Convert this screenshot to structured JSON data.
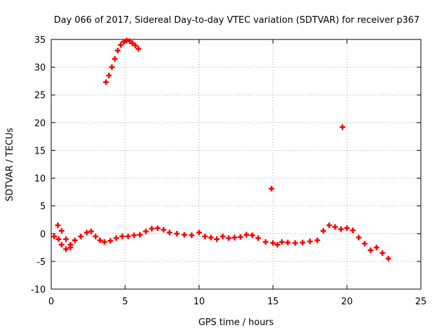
{
  "chart_data": {
    "type": "scatter",
    "title": "Day 066 of 2017, Sidereal Day-to-day VTEC variation (SDTVAR) for receiver p367",
    "xlabel": "GPS time / hours",
    "ylabel": "SDTVAR / TECUs",
    "xlim": [
      0,
      25
    ],
    "ylim": [
      -10,
      35
    ],
    "xticks": [
      0,
      5,
      10,
      15,
      20,
      25
    ],
    "yticks": [
      -10,
      -5,
      0,
      5,
      10,
      15,
      20,
      25,
      30,
      35
    ],
    "xtick_labels": [
      "0",
      "5",
      "10",
      "15",
      "20",
      "25"
    ],
    "ytick_labels": [
      "-10",
      "-5",
      "0",
      "5",
      "10",
      "15",
      "20",
      "25",
      "30",
      "35"
    ],
    "grid": true,
    "marker_color": "#ff0000",
    "series": [
      {
        "name": "SDTVAR",
        "x": [
          0.2,
          0.5,
          0.7,
          1.0,
          1.3,
          1.6,
          2.0,
          2.4,
          2.7,
          3.0,
          3.3,
          3.6,
          4.0,
          4.4,
          4.8,
          5.2,
          5.6,
          6.0,
          6.4,
          6.8,
          7.2,
          7.6,
          8.0,
          8.5,
          9.0,
          9.5,
          10.0,
          10.4,
          10.8,
          11.2,
          11.6,
          12.0,
          12.4,
          12.8,
          13.2,
          13.6,
          14.0,
          14.5,
          15.0,
          15.3,
          15.6,
          16.0,
          16.5,
          17.0,
          17.5,
          18.0,
          18.4,
          18.8,
          19.2,
          19.6,
          20.0,
          20.4,
          20.8,
          21.2,
          21.6,
          22.0,
          22.4,
          22.8,
          0.45,
          0.7,
          1.0,
          1.3,
          3.7,
          3.9,
          4.1,
          4.3,
          4.5,
          4.7,
          4.9,
          5.1,
          5.3,
          5.5,
          5.7,
          5.9,
          14.9,
          19.7
        ],
        "y": [
          -0.5,
          -1.0,
          -2.0,
          -2.8,
          -2.0,
          -1.2,
          -0.5,
          0.2,
          0.4,
          -0.5,
          -1.2,
          -1.5,
          -1.3,
          -0.8,
          -0.5,
          -0.5,
          -0.3,
          -0.2,
          0.4,
          0.9,
          1.0,
          0.7,
          0.2,
          0.0,
          -0.2,
          -0.3,
          0.2,
          -0.5,
          -0.7,
          -1.0,
          -0.5,
          -0.8,
          -0.7,
          -0.6,
          -0.2,
          -0.3,
          -0.8,
          -1.5,
          -1.7,
          -2.0,
          -1.5,
          -1.6,
          -1.7,
          -1.6,
          -1.4,
          -1.2,
          0.5,
          1.5,
          1.2,
          0.8,
          1.0,
          0.6,
          -0.7,
          -1.8,
          -3.0,
          -2.5,
          -3.5,
          -4.5,
          1.5,
          0.5,
          -1.0,
          -2.5,
          27.3,
          28.5,
          30.0,
          31.5,
          33.0,
          34.0,
          34.6,
          34.8,
          34.7,
          34.3,
          33.9,
          33.3,
          8.1,
          19.2
        ]
      }
    ]
  }
}
